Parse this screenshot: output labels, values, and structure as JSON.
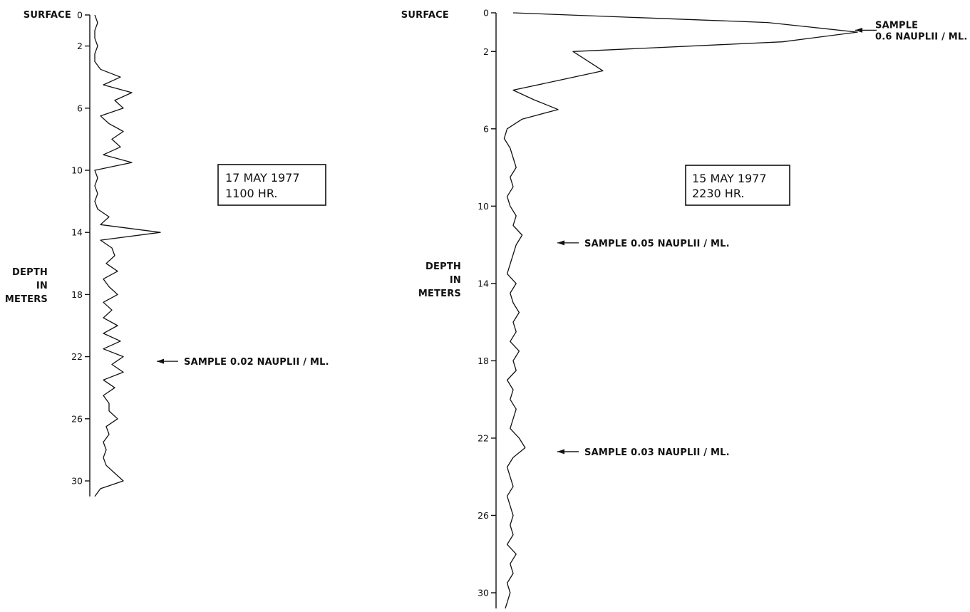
{
  "chart_data": [
    {
      "type": "line",
      "orientation": "vertical-profile",
      "surface_label": "SURFACE",
      "ylabel_lines": [
        "DEPTH",
        "IN",
        "METERS"
      ],
      "ylim": [
        0,
        31
      ],
      "yticks": [
        0,
        2,
        6,
        10,
        14,
        18,
        22,
        26,
        30
      ],
      "ytick_labels": [
        "0",
        "2",
        "6",
        "10",
        "14",
        "18",
        "22",
        "26",
        "30"
      ],
      "date_box": [
        "17 MAY 1977",
        "1100 HR."
      ],
      "annotations": [
        {
          "depth": 22.3,
          "lines": [
            "SAMPLE  0.02  NAUPLII / ML."
          ]
        }
      ],
      "series": [
        {
          "depth": [
            0,
            0.5,
            1.0,
            1.5,
            2.0,
            2.5,
            3.0,
            3.5,
            4.0,
            4.5,
            5.0,
            5.5,
            6.0,
            6.5,
            7.0,
            7.5,
            8.0,
            8.5,
            9.0,
            9.5,
            10.0,
            10.5,
            11.0,
            11.5,
            12.0,
            12.5,
            13.0,
            13.5,
            14.0,
            14.5,
            15.0,
            15.5,
            16.0,
            16.5,
            17.0,
            17.5,
            18.0,
            18.5,
            19.0,
            19.5,
            20.0,
            20.5,
            21.0,
            21.5,
            22.0,
            22.5,
            23.0,
            23.5,
            24.0,
            24.5,
            25.0,
            25.5,
            26.0,
            26.5,
            27.0,
            27.5,
            28.0,
            28.5,
            29.0,
            29.5,
            30.0,
            30.5,
            31.0
          ],
          "values": [
            0.05,
            0.1,
            0.05,
            0.05,
            0.1,
            0.05,
            0.05,
            0.15,
            0.5,
            0.2,
            0.7,
            0.4,
            0.55,
            0.15,
            0.3,
            0.55,
            0.35,
            0.5,
            0.2,
            0.7,
            0.05,
            0.1,
            0.05,
            0.1,
            0.05,
            0.1,
            0.3,
            0.15,
            1.2,
            0.15,
            0.35,
            0.4,
            0.25,
            0.45,
            0.2,
            0.3,
            0.45,
            0.2,
            0.35,
            0.2,
            0.45,
            0.2,
            0.5,
            0.2,
            0.55,
            0.35,
            0.55,
            0.2,
            0.4,
            0.2,
            0.3,
            0.3,
            0.45,
            0.25,
            0.3,
            0.2,
            0.25,
            0.2,
            0.25,
            0.4,
            0.55,
            0.15,
            0.05
          ]
        }
      ]
    },
    {
      "type": "line",
      "orientation": "vertical-profile",
      "surface_label": "SURFACE",
      "ylabel_lines": [
        "DEPTH",
        "IN",
        "METERS"
      ],
      "ylim": [
        0,
        31
      ],
      "yticks": [
        0,
        2,
        6,
        10,
        14,
        18,
        22,
        26,
        30
      ],
      "ytick_labels": [
        "0",
        "2",
        "6",
        "10",
        "14",
        "18",
        "22",
        "26",
        "30"
      ],
      "date_box": [
        "15 MAY 1977",
        "2230 HR."
      ],
      "annotations": [
        {
          "depth": 0.9,
          "lines": [
            "SAMPLE",
            "0.6  NAUPLII / ML."
          ]
        },
        {
          "depth": 11.9,
          "lines": [
            "SAMPLE  0.05  NAUPLII / ML."
          ]
        },
        {
          "depth": 22.7,
          "lines": [
            "SAMPLE  0.03  NAUPLII / ML."
          ]
        }
      ],
      "series": [
        {
          "depth": [
            0,
            0.5,
            1.0,
            1.5,
            2.0,
            2.5,
            3.0,
            3.5,
            4.0,
            4.5,
            5.0,
            5.5,
            6.0,
            6.5,
            7.0,
            7.5,
            8.0,
            8.5,
            9.0,
            9.5,
            10.0,
            10.5,
            11.0,
            11.5,
            12.0,
            12.5,
            13.0,
            13.5,
            14.0,
            14.5,
            15.0,
            15.5,
            16.0,
            16.5,
            17.0,
            17.5,
            18.0,
            18.5,
            19.0,
            19.5,
            20.0,
            20.5,
            21.0,
            21.5,
            22.0,
            22.5,
            23.0,
            23.5,
            24.0,
            24.5,
            25.0,
            25.5,
            26.0,
            26.5,
            27.0,
            27.5,
            28.0,
            28.5,
            29.0,
            29.5,
            30.0,
            30.5,
            31.0
          ],
          "values": [
            0.05,
            0.9,
            1.2,
            0.95,
            0.25,
            0.3,
            0.35,
            0.2,
            0.05,
            0.12,
            0.2,
            0.08,
            0.03,
            0.02,
            0.04,
            0.05,
            0.06,
            0.04,
            0.05,
            0.03,
            0.04,
            0.06,
            0.05,
            0.08,
            0.06,
            0.05,
            0.04,
            0.03,
            0.06,
            0.04,
            0.05,
            0.07,
            0.05,
            0.06,
            0.04,
            0.07,
            0.05,
            0.06,
            0.03,
            0.05,
            0.04,
            0.06,
            0.05,
            0.04,
            0.07,
            0.09,
            0.05,
            0.03,
            0.04,
            0.05,
            0.03,
            0.04,
            0.05,
            0.04,
            0.05,
            0.03,
            0.06,
            0.04,
            0.05,
            0.03,
            0.04,
            0.03,
            0.02
          ]
        }
      ]
    }
  ]
}
